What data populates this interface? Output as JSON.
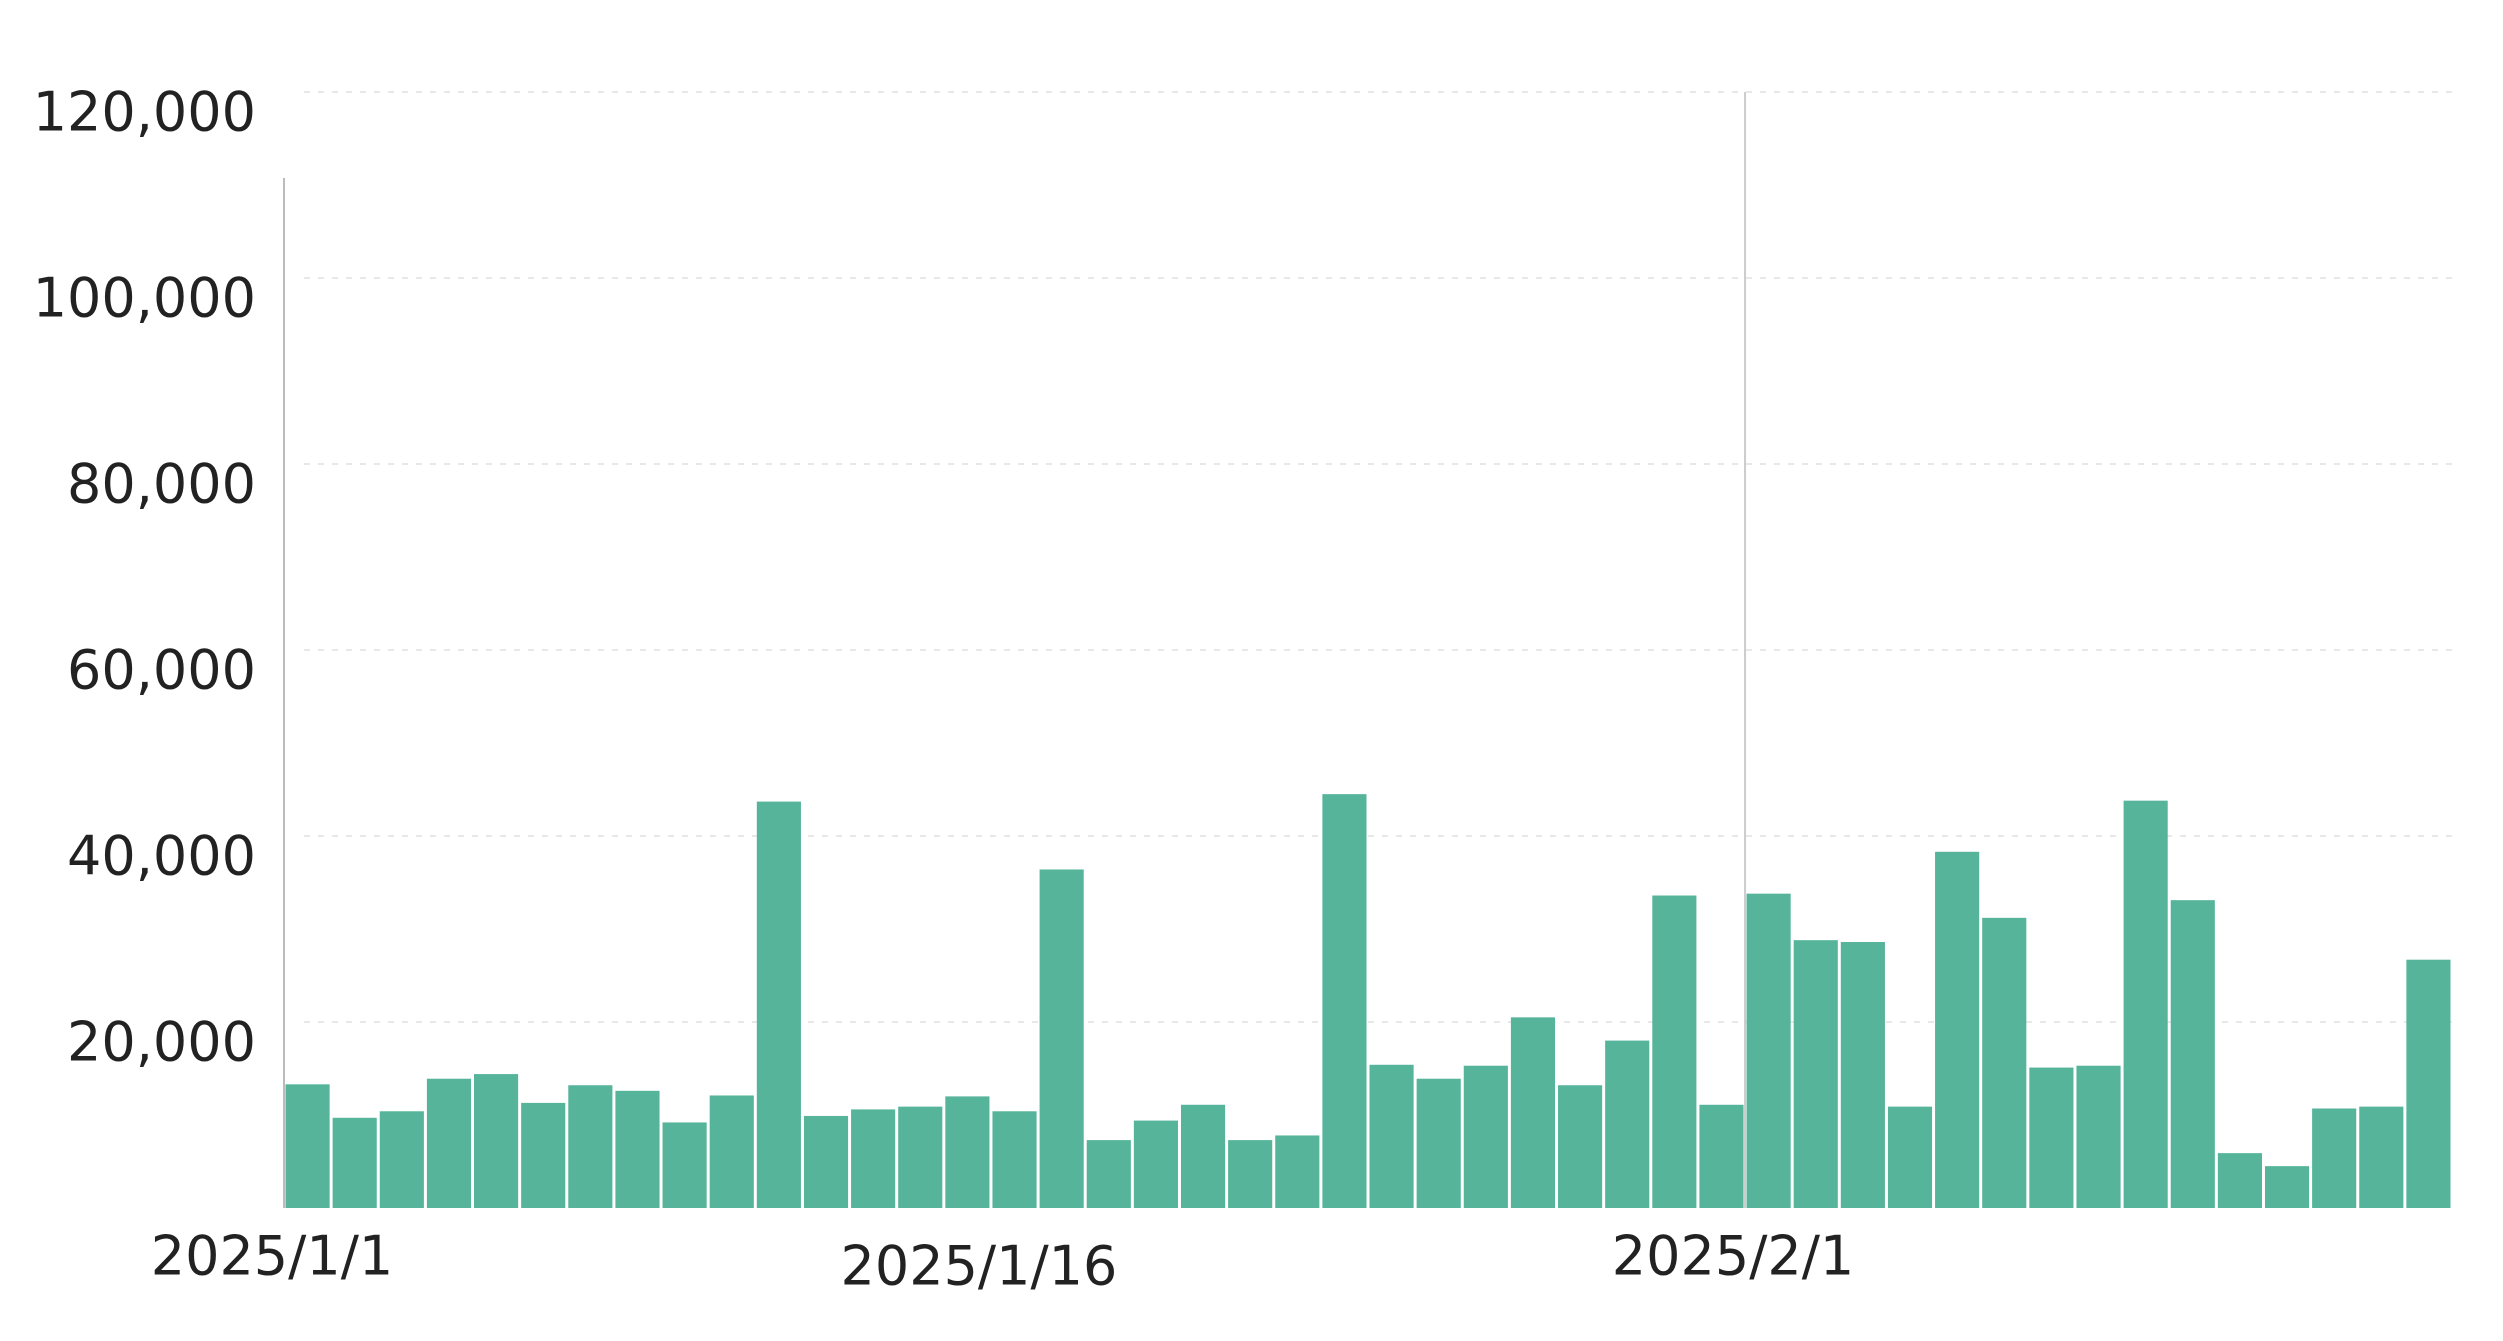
{
  "chart_data": {
    "type": "bar",
    "categories": [
      "2025/1/1",
      null,
      null,
      null,
      null,
      null,
      null,
      null,
      null,
      null,
      null,
      null,
      null,
      null,
      null,
      "2025/1/16",
      null,
      null,
      null,
      null,
      null,
      null,
      null,
      null,
      null,
      null,
      null,
      null,
      null,
      null,
      null,
      "2025/2/1",
      null,
      null,
      null,
      null,
      null,
      null,
      null,
      null,
      null,
      null,
      null,
      null,
      null,
      null
    ],
    "values": [
      13300,
      9700,
      10400,
      13900,
      14400,
      11300,
      13200,
      12600,
      9200,
      12100,
      43700,
      9900,
      10600,
      10900,
      12000,
      10400,
      36400,
      7300,
      9400,
      11100,
      7300,
      7800,
      44500,
      15400,
      13900,
      15300,
      20500,
      13200,
      18000,
      33600,
      11100,
      33800,
      28800,
      28600,
      10900,
      38300,
      31200,
      15100,
      15300,
      43800,
      33100,
      5900,
      4500,
      10700,
      10900,
      26700
    ],
    "color": "#55b49a",
    "ylim": [
      0,
      120000
    ],
    "yticks": [
      {
        "value": 20000,
        "label": "20,000"
      },
      {
        "value": 40000,
        "label": "40,000"
      },
      {
        "value": 60000,
        "label": "60,000"
      },
      {
        "value": 80000,
        "label": "80,000"
      },
      {
        "value": 100000,
        "label": "100,000"
      },
      {
        "value": 120000,
        "label": "120,000"
      }
    ],
    "grid": true
  }
}
